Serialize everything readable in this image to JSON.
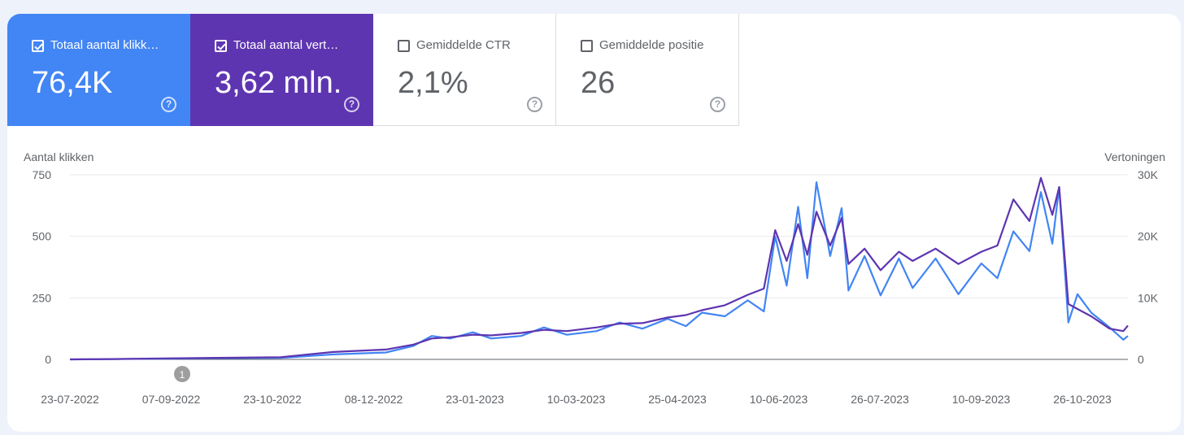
{
  "metrics": [
    {
      "label": "Totaal aantal klikk…",
      "value": "76,4K",
      "checked": true,
      "color": "#4285f4"
    },
    {
      "label": "Totaal aantal vert…",
      "value": "3,62 mln.",
      "checked": true,
      "color": "#5e35b1"
    },
    {
      "label": "Gemiddelde CTR",
      "value": "2,1%",
      "checked": false
    },
    {
      "label": "Gemiddelde positie",
      "value": "26",
      "checked": false
    }
  ],
  "help_glyph": "?",
  "annotation": {
    "label": "1",
    "date": "2022-09-10"
  },
  "chart_data": {
    "type": "line",
    "left_axis_title": "Aantal klikken",
    "right_axis_title": "Vertoningen",
    "left_ticks": [
      "750",
      "500",
      "250",
      "0"
    ],
    "right_ticks": [
      "30K",
      "20K",
      "10K",
      "0"
    ],
    "ylim_left": [
      0,
      750
    ],
    "ylim_right": [
      0,
      30000
    ],
    "x_range": [
      "2022-07-23",
      "2023-10-28"
    ],
    "x_tick_labels": [
      "23-07-2022",
      "07-09-2022",
      "23-10-2022",
      "08-12-2022",
      "23-01-2023",
      "10-03-2023",
      "25-04-2023",
      "10-06-2023",
      "26-07-2023",
      "10-09-2023",
      "26-10-2023"
    ],
    "grid": true,
    "series": [
      {
        "name": "Totaal aantal klikken",
        "axis": "left",
        "color": "#4285f4",
        "points": [
          [
            "2022-07-23",
            0
          ],
          [
            "2022-08-10",
            1
          ],
          [
            "2022-09-01",
            3
          ],
          [
            "2022-09-25",
            5
          ],
          [
            "2022-10-23",
            6
          ],
          [
            "2022-11-15",
            20
          ],
          [
            "2022-12-08",
            28
          ],
          [
            "2022-12-20",
            55
          ],
          [
            "2022-12-28",
            95
          ],
          [
            "2023-01-05",
            85
          ],
          [
            "2023-01-15",
            110
          ],
          [
            "2023-01-23",
            85
          ],
          [
            "2023-02-05",
            95
          ],
          [
            "2023-02-15",
            130
          ],
          [
            "2023-02-25",
            100
          ],
          [
            "2023-03-10",
            115
          ],
          [
            "2023-03-20",
            150
          ],
          [
            "2023-03-30",
            125
          ],
          [
            "2023-04-10",
            165
          ],
          [
            "2023-04-18",
            135
          ],
          [
            "2023-04-25",
            190
          ],
          [
            "2023-05-05",
            175
          ],
          [
            "2023-05-15",
            240
          ],
          [
            "2023-05-22",
            195
          ],
          [
            "2023-05-27",
            500
          ],
          [
            "2023-06-01",
            300
          ],
          [
            "2023-06-06",
            620
          ],
          [
            "2023-06-10",
            330
          ],
          [
            "2023-06-14",
            720
          ],
          [
            "2023-06-20",
            420
          ],
          [
            "2023-06-25",
            615
          ],
          [
            "2023-06-28",
            280
          ],
          [
            "2023-07-05",
            420
          ],
          [
            "2023-07-12",
            260
          ],
          [
            "2023-07-20",
            410
          ],
          [
            "2023-07-26",
            290
          ],
          [
            "2023-08-05",
            410
          ],
          [
            "2023-08-15",
            265
          ],
          [
            "2023-08-25",
            390
          ],
          [
            "2023-09-01",
            330
          ],
          [
            "2023-09-08",
            520
          ],
          [
            "2023-09-15",
            440
          ],
          [
            "2023-09-20",
            680
          ],
          [
            "2023-09-25",
            470
          ],
          [
            "2023-09-28",
            700
          ],
          [
            "2023-10-02",
            150
          ],
          [
            "2023-10-06",
            265
          ],
          [
            "2023-10-12",
            190
          ],
          [
            "2023-10-20",
            130
          ],
          [
            "2023-10-26",
            80
          ],
          [
            "2023-10-28",
            95
          ]
        ]
      },
      {
        "name": "Totaal aantal vertoningen",
        "axis": "right",
        "color": "#5e35b1",
        "points": [
          [
            "2022-07-23",
            0
          ],
          [
            "2022-08-10",
            50
          ],
          [
            "2022-09-01",
            160
          ],
          [
            "2022-09-25",
            250
          ],
          [
            "2022-10-23",
            360
          ],
          [
            "2022-11-15",
            1200
          ],
          [
            "2022-12-08",
            1600
          ],
          [
            "2022-12-20",
            2400
          ],
          [
            "2022-12-28",
            3400
          ],
          [
            "2023-01-05",
            3600
          ],
          [
            "2023-01-15",
            4000
          ],
          [
            "2023-01-23",
            3900
          ],
          [
            "2023-02-05",
            4300
          ],
          [
            "2023-02-15",
            4800
          ],
          [
            "2023-02-25",
            4600
          ],
          [
            "2023-03-10",
            5200
          ],
          [
            "2023-03-20",
            5800
          ],
          [
            "2023-03-30",
            5900
          ],
          [
            "2023-04-10",
            6800
          ],
          [
            "2023-04-18",
            7200
          ],
          [
            "2023-04-25",
            8000
          ],
          [
            "2023-05-05",
            8800
          ],
          [
            "2023-05-15",
            10500
          ],
          [
            "2023-05-22",
            11500
          ],
          [
            "2023-05-27",
            21000
          ],
          [
            "2023-06-01",
            16000
          ],
          [
            "2023-06-06",
            22000
          ],
          [
            "2023-06-10",
            17000
          ],
          [
            "2023-06-14",
            24000
          ],
          [
            "2023-06-20",
            18500
          ],
          [
            "2023-06-25",
            23000
          ],
          [
            "2023-06-28",
            15500
          ],
          [
            "2023-07-05",
            18000
          ],
          [
            "2023-07-12",
            14500
          ],
          [
            "2023-07-20",
            17500
          ],
          [
            "2023-07-26",
            16000
          ],
          [
            "2023-08-05",
            18000
          ],
          [
            "2023-08-15",
            15500
          ],
          [
            "2023-08-25",
            17500
          ],
          [
            "2023-09-01",
            18500
          ],
          [
            "2023-09-08",
            26000
          ],
          [
            "2023-09-15",
            22500
          ],
          [
            "2023-09-20",
            29500
          ],
          [
            "2023-09-25",
            23500
          ],
          [
            "2023-09-28",
            28000
          ],
          [
            "2023-10-02",
            9000
          ],
          [
            "2023-10-06",
            8200
          ],
          [
            "2023-10-12",
            7000
          ],
          [
            "2023-10-20",
            5000
          ],
          [
            "2023-10-26",
            4600
          ],
          [
            "2023-10-28",
            5500
          ]
        ]
      }
    ]
  }
}
